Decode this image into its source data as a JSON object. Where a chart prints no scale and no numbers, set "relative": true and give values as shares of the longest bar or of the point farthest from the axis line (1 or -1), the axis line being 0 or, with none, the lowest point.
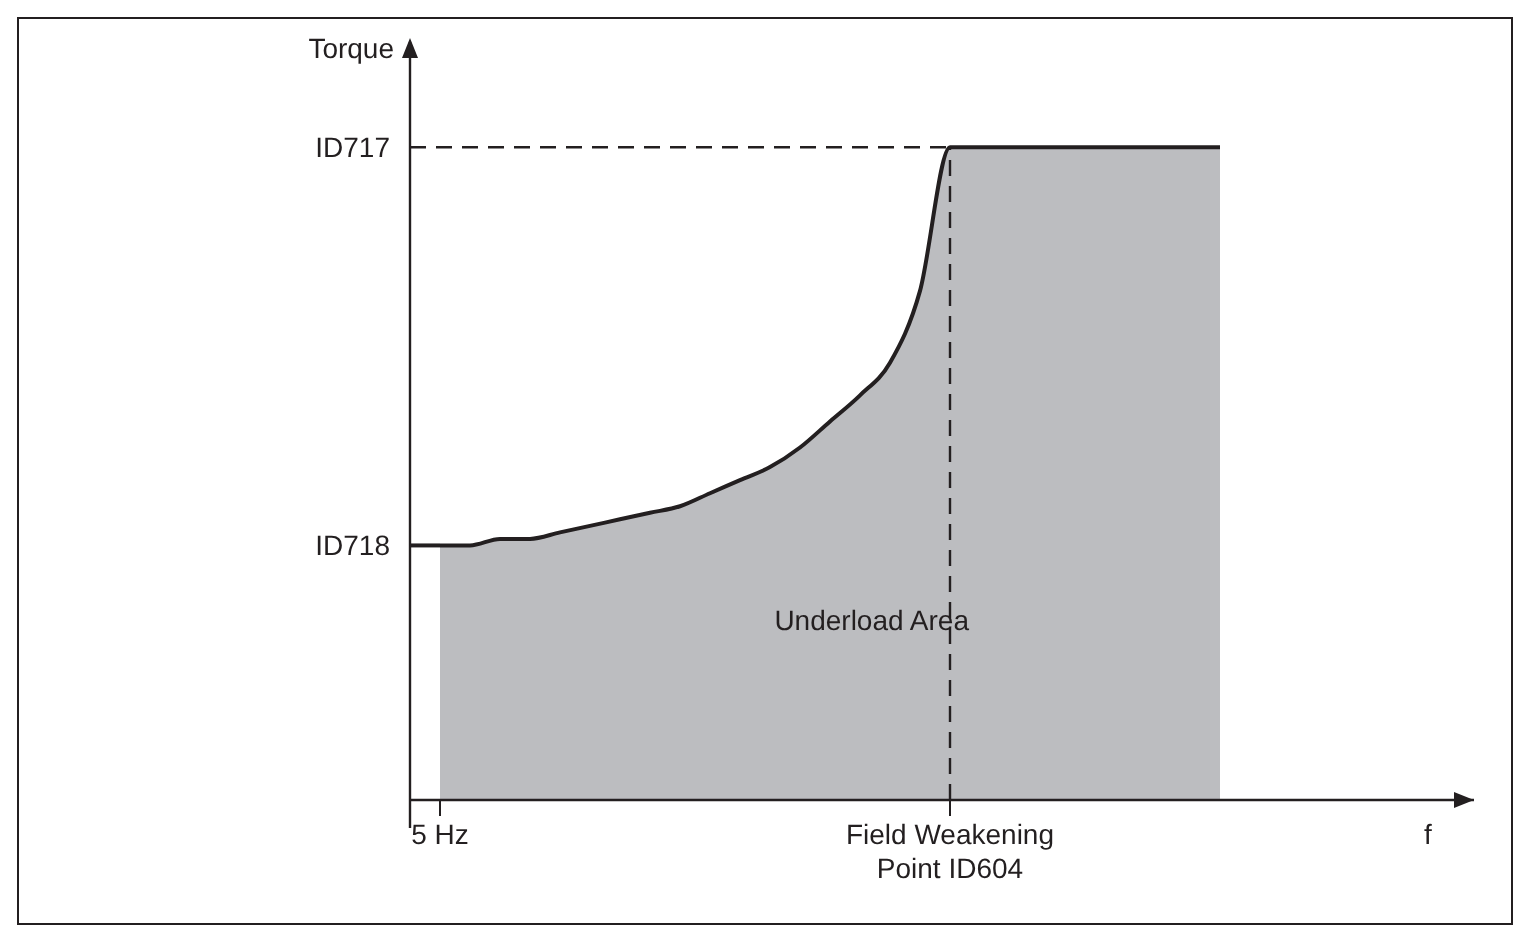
{
  "chart_data": {
    "type": "area",
    "ylabel": "Torque",
    "relative": true,
    "categories": [
      null,
      "5 Hz",
      null,
      null,
      null,
      null,
      null,
      null,
      null,
      null,
      null,
      null,
      null,
      null,
      null,
      null,
      null,
      null,
      "Field Weakening Point ID604",
      null,
      null,
      null,
      null,
      null,
      null,
      null,
      null,
      null
    ],
    "series": [
      {
        "color": "#bcbdc0",
        "values": [
          null,
          0.39,
          0.39,
          0.4,
          0.4,
          0.41,
          0.42,
          0.43,
          0.44,
          0.45,
          0.47,
          0.49,
          0.51,
          0.54,
          0.58,
          0.62,
          0.67,
          0.78,
          1.0,
          1.0,
          1.0,
          1.0,
          1.0,
          1.0,
          1.0,
          1.0,
          1.0,
          1.0
        ]
      },
      {
        "type": "line",
        "color": "#231f20",
        "values": [
          0.39,
          0.39,
          null,
          null,
          null,
          null,
          null,
          null,
          null,
          null,
          null,
          null,
          null,
          null,
          null,
          null,
          null,
          null,
          null,
          null,
          null,
          null,
          null,
          null,
          null,
          null,
          null,
          null
        ]
      }
    ],
    "ref_lines": [
      {
        "axis": "y",
        "value": 1,
        "label": "ID717",
        "line_style": "dashed",
        "color": "#231f20"
      },
      {
        "axis": "x",
        "value": "Field Weakening Point ID604",
        "label": null,
        "line_style": "dashed",
        "color": "#231f20"
      }
    ],
    "annotations": [
      "ID718",
      "Underload Area",
      "f"
    ]
  }
}
